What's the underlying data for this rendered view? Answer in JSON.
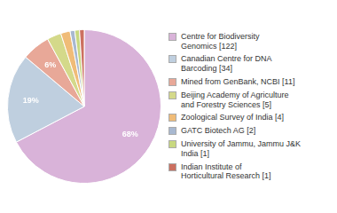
{
  "chart_data": {
    "type": "pie",
    "categories": [
      "Centre for Biodiversity\nGenomics [122]",
      "Canadian Centre for DNA\nBarcoding [34]",
      "Mined from GenBank, NCBI [11]",
      "Beijing Academy of Agriculture\nand Forestry Sciences [5]",
      "Zoological Survey of India [4]",
      "GATC Biotech AG [2]",
      "University of Jammu, Jammu J&K\nIndia [1]",
      "Indian Institute of\nHorticultural Research [1]"
    ],
    "values": [
      68,
      19,
      6,
      3,
      2,
      1,
      1,
      1
    ],
    "value_labels": [
      "68%",
      "19%",
      "6%",
      null,
      null,
      null,
      null,
      null
    ],
    "colors": [
      "#d9b3d9",
      "#bfcfdf",
      "#e8a898",
      "#d4d98a",
      "#f0bc78",
      "#a8b8d0",
      "#c8d880",
      "#cc7060"
    ],
    "data_labels": true,
    "legend": "right"
  }
}
